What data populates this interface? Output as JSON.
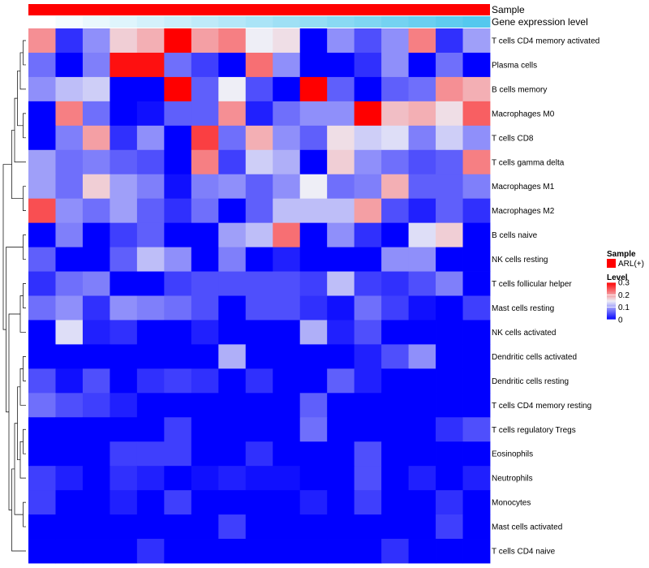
{
  "chart_data": {
    "type": "heatmap",
    "rows": [
      "T cells CD4 memory activated",
      "Plasma cells",
      "B cells memory",
      "Macrophages M0",
      "T cells CD8",
      "T cells gamma delta",
      "Macrophages M1",
      "Macrophages M2",
      "B cells naive",
      "NK cells resting",
      "T cells follicular helper",
      "Mast cells resting",
      "NK cells activated",
      "Dendritic cells activated",
      "Dendritic cells resting",
      "T cells CD4 memory resting",
      "T cells regulatory  Tregs",
      "Eosinophils",
      "Neutrophils",
      "Monocytes",
      "Mast cells activated",
      "T cells CD4 naive"
    ],
    "n_columns": 17,
    "values": [
      [
        0.21,
        0.03,
        0.09,
        0.17,
        0.19,
        0.3,
        0.2,
        0.22,
        0.15,
        0.16,
        0.0,
        0.09,
        0.05,
        0.09,
        0.22,
        0.03,
        0.1
      ],
      [
        0.07,
        0.0,
        0.08,
        0.29,
        0.29,
        0.07,
        0.04,
        0.0,
        0.23,
        0.09,
        0.0,
        0.0,
        0.03,
        0.09,
        0.0,
        0.07,
        0.0
      ],
      [
        0.09,
        0.12,
        0.13,
        0.0,
        0.0,
        0.3,
        0.06,
        0.15,
        0.05,
        0.0,
        0.3,
        0.06,
        0.0,
        0.06,
        0.07,
        0.21,
        0.19
      ],
      [
        0.0,
        0.22,
        0.07,
        0.0,
        0.01,
        0.06,
        0.06,
        0.21,
        0.02,
        0.07,
        0.09,
        0.09,
        0.3,
        0.18,
        0.19,
        0.16,
        0.24
      ],
      [
        0.0,
        0.08,
        0.2,
        0.03,
        0.09,
        0.0,
        0.26,
        0.07,
        0.19,
        0.09,
        0.06,
        0.16,
        0.13,
        0.14,
        0.08,
        0.13,
        0.09
      ],
      [
        0.1,
        0.07,
        0.08,
        0.06,
        0.05,
        0.0,
        0.22,
        0.04,
        0.13,
        0.11,
        0.0,
        0.17,
        0.09,
        0.07,
        0.05,
        0.06,
        0.22
      ],
      [
        0.1,
        0.07,
        0.17,
        0.1,
        0.08,
        0.01,
        0.08,
        0.09,
        0.06,
        0.09,
        0.15,
        0.07,
        0.08,
        0.19,
        0.06,
        0.06,
        0.08
      ],
      [
        0.25,
        0.09,
        0.07,
        0.1,
        0.06,
        0.03,
        0.07,
        0.0,
        0.06,
        0.12,
        0.12,
        0.12,
        0.2,
        0.05,
        0.02,
        0.06,
        0.03
      ],
      [
        0.0,
        0.08,
        0.0,
        0.04,
        0.06,
        0.0,
        0.0,
        0.1,
        0.12,
        0.23,
        0.0,
        0.09,
        0.03,
        0.0,
        0.14,
        0.17,
        0.0
      ],
      [
        0.06,
        0.0,
        0.0,
        0.06,
        0.12,
        0.09,
        0.0,
        0.08,
        0.0,
        0.02,
        0.0,
        0.0,
        0.0,
        0.09,
        0.09,
        0.0,
        0.0
      ],
      [
        0.03,
        0.07,
        0.08,
        0.0,
        0.0,
        0.04,
        0.05,
        0.05,
        0.05,
        0.05,
        0.04,
        0.12,
        0.04,
        0.03,
        0.05,
        0.08,
        0.0
      ],
      [
        0.07,
        0.09,
        0.03,
        0.09,
        0.08,
        0.07,
        0.05,
        0.0,
        0.05,
        0.05,
        0.03,
        0.01,
        0.07,
        0.04,
        0.01,
        0.0,
        0.04
      ],
      [
        0.0,
        0.14,
        0.02,
        0.03,
        0.0,
        0.0,
        0.02,
        0.0,
        0.0,
        0.0,
        0.11,
        0.02,
        0.05,
        0.0,
        0.0,
        0.0,
        0.0
      ],
      [
        0.0,
        0.0,
        0.0,
        0.0,
        0.0,
        0.0,
        0.0,
        0.11,
        0.0,
        0.0,
        0.0,
        0.0,
        0.02,
        0.05,
        0.09,
        0.0,
        0.0
      ],
      [
        0.05,
        0.01,
        0.05,
        0.0,
        0.03,
        0.04,
        0.03,
        0.0,
        0.03,
        0.0,
        0.0,
        0.06,
        0.02,
        0.0,
        0.0,
        0.0,
        0.0
      ],
      [
        0.07,
        0.05,
        0.04,
        0.02,
        0.0,
        0.0,
        0.0,
        0.0,
        0.0,
        0.0,
        0.06,
        0.0,
        0.0,
        0.0,
        0.0,
        0.0,
        0.0
      ],
      [
        0.0,
        0.0,
        0.0,
        0.0,
        0.0,
        0.04,
        0.0,
        0.0,
        0.0,
        0.0,
        0.07,
        0.0,
        0.0,
        0.0,
        0.0,
        0.03,
        0.05
      ],
      [
        0.0,
        0.0,
        0.0,
        0.04,
        0.04,
        0.04,
        0.0,
        0.0,
        0.03,
        0.0,
        0.0,
        0.0,
        0.05,
        0.0,
        0.0,
        0.0,
        0.0
      ],
      [
        0.04,
        0.02,
        0.0,
        0.03,
        0.02,
        0.0,
        0.01,
        0.02,
        0.01,
        0.01,
        0.0,
        0.0,
        0.05,
        0.0,
        0.02,
        0.0,
        0.02
      ],
      [
        0.04,
        0.0,
        0.0,
        0.02,
        0.0,
        0.04,
        0.0,
        0.0,
        0.0,
        0.0,
        0.02,
        0.0,
        0.04,
        0.0,
        0.0,
        0.03,
        0.0
      ],
      [
        0.0,
        0.0,
        0.0,
        0.0,
        0.0,
        0.0,
        0.0,
        0.04,
        0.0,
        0.0,
        0.0,
        0.0,
        0.0,
        0.0,
        0.0,
        0.04,
        0.0
      ],
      [
        0.0,
        0.0,
        0.0,
        0.0,
        0.03,
        0.0,
        0.0,
        0.0,
        0.0,
        0.0,
        0.0,
        0.0,
        0.0,
        0.03,
        0.0,
        0.0,
        0.0
      ]
    ],
    "value_range": [
      0,
      0.3
    ],
    "color_low": "#0000ff",
    "color_mid": "#eeeef6",
    "color_high": "#ff0000",
    "annotations": [
      {
        "name": "Sample",
        "color": "#ff0000"
      },
      {
        "name": "Gene expression level",
        "color_start": "#ffffff",
        "color_end": "#54c8ee"
      }
    ],
    "legend": {
      "sample_title": "Sample",
      "sample_item": "ARL(+)",
      "sample_color": "#ff0000",
      "level_title": "Level",
      "level_ticks": [
        0.3,
        0.2,
        0.1,
        0
      ],
      "level_tick_labels": [
        "0.3",
        "0.2",
        "0.1",
        "0"
      ]
    }
  }
}
